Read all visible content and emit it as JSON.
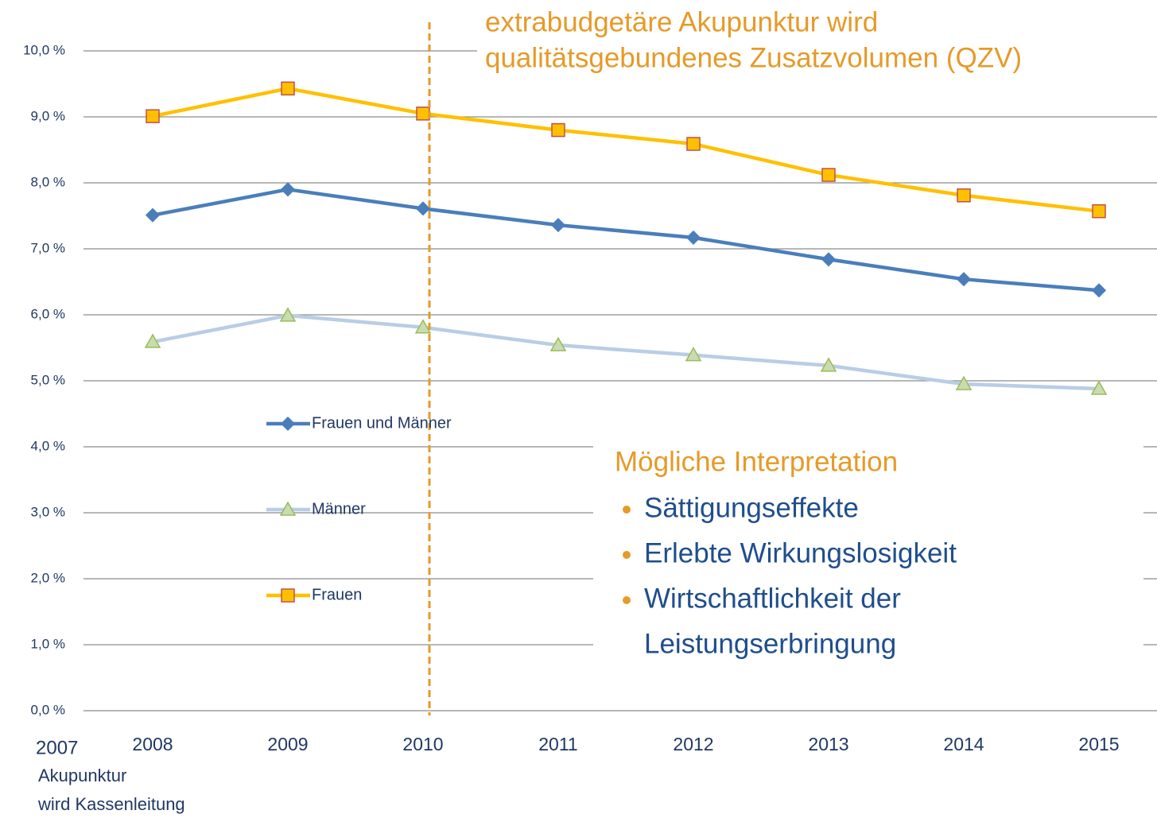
{
  "chart_data": {
    "type": "line",
    "categories": [
      "2008",
      "2009",
      "2010",
      "2011",
      "2012",
      "2013",
      "2014",
      "2015"
    ],
    "series": [
      {
        "name": "Frauen und Männer",
        "color": "#4a7ebb",
        "marker": "diamond",
        "marker_fill": "#4a7ebb",
        "marker_edge": "#4a7ebb",
        "values": [
          7.51,
          7.9,
          7.61,
          7.36,
          7.17,
          6.84,
          6.54,
          6.37
        ]
      },
      {
        "name": "Männer",
        "color": "#b9cde5",
        "marker": "triangle",
        "marker_fill": "#c8dcb0",
        "marker_edge": "#9bbb59",
        "values": [
          5.59,
          5.99,
          5.81,
          5.54,
          5.39,
          5.23,
          4.95,
          4.88
        ]
      },
      {
        "name": "Frauen",
        "color": "#ffc000",
        "marker": "square",
        "marker_fill": "#ffc000",
        "marker_edge": "#c0504d",
        "values": [
          9.01,
          9.43,
          9.05,
          8.8,
          8.59,
          8.12,
          7.81,
          7.57
        ]
      }
    ],
    "ylim": [
      0,
      10
    ],
    "yticks": [
      {
        "value": 0,
        "label": "0,0 %"
      },
      {
        "value": 1,
        "label": "1,0 %"
      },
      {
        "value": 2,
        "label": "2,0 %"
      },
      {
        "value": 3,
        "label": "3,0 %"
      },
      {
        "value": 4,
        "label": "4,0 %"
      },
      {
        "value": 5,
        "label": "5,0 %"
      },
      {
        "value": 6,
        "label": "6,0 %"
      },
      {
        "value": 7,
        "label": "7,0 %"
      },
      {
        "value": 8,
        "label": "8,0 %"
      },
      {
        "value": 9,
        "label": "9,0 %"
      },
      {
        "value": 10,
        "label": "10,0 %"
      }
    ],
    "grid": true,
    "annotation_top": [
      "extrabudgetäre Akupunktur wird",
      "qualitätsgebundenes Zusatzvolumen (QZV)"
    ],
    "note_2007": {
      "year": "2007",
      "lines": [
        "Akupunktur",
        "wird Kassenleitung"
      ]
    },
    "interpretation": {
      "title": "Mögliche Interpretation",
      "bullets": [
        [
          "Sättigungseffekte"
        ],
        [
          "Erlebte Wirkungslosigkeit"
        ],
        [
          "Wirtschaftlichkeit der",
          "Leistungserbringung"
        ]
      ]
    }
  }
}
